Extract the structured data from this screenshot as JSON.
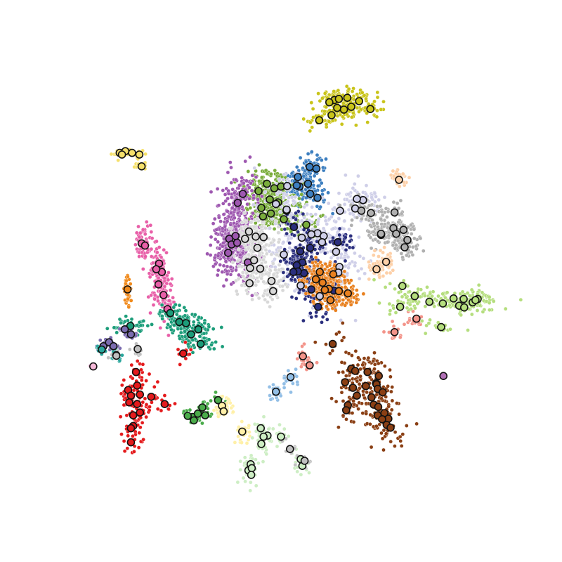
{
  "chart_data": {
    "type": "scatter",
    "title": "",
    "xlabel": "",
    "ylabel": "",
    "axes_visible": false,
    "grid": false,
    "legend": "none",
    "xlim": [
      0,
      100
    ],
    "ylim": [
      0,
      100
    ],
    "clusters": [
      {
        "color": "#c9c41a",
        "spread": [
          3.2,
          1.8
        ],
        "count": 240,
        "highlights": [
          [
            59.5,
            82.2
          ],
          [
            60.3,
            82.4
          ],
          [
            61.8,
            82.6
          ],
          [
            58.6,
            81.8
          ],
          [
            60.0,
            80.8
          ],
          [
            61.2,
            80.5
          ],
          [
            63.9,
            82.0
          ],
          [
            65.9,
            80.6
          ],
          [
            56.8,
            78.6
          ],
          [
            59.0,
            79.5
          ],
          [
            62.5,
            81.0
          ]
        ]
      },
      {
        "color": "#f5e06a",
        "spread": [
          1.3,
          0.6
        ],
        "count": 60,
        "highlights": [
          [
            21.3,
            72.8
          ],
          [
            22.3,
            73.1
          ],
          [
            23.5,
            72.8
          ],
          [
            24.8,
            72.5
          ],
          [
            21.7,
            72.5
          ],
          [
            25.2,
            70.4
          ]
        ]
      },
      {
        "color": "#3d7fc0",
        "spread": [
          2.4,
          2.2
        ],
        "count": 200,
        "highlights": [
          [
            55.1,
            70.3
          ],
          [
            56.3,
            70.0
          ],
          [
            53.0,
            68.5
          ],
          [
            54.8,
            67.3
          ],
          [
            53.3,
            66.8
          ],
          [
            55.2,
            65.5
          ],
          [
            56.5,
            64.8
          ],
          [
            52.8,
            67.0
          ]
        ]
      },
      {
        "color": "#7aad3c",
        "spread": [
          3.2,
          3.0
        ],
        "count": 400,
        "highlights": [
          [
            47.5,
            67.3
          ],
          [
            48.8,
            66.5
          ],
          [
            46.0,
            66.0
          ],
          [
            50.0,
            66.8
          ],
          [
            48.0,
            64.5
          ],
          [
            49.5,
            64.0
          ],
          [
            46.5,
            63.0
          ],
          [
            48.2,
            62.0
          ],
          [
            51.0,
            62.5
          ],
          [
            50.5,
            61.0
          ],
          [
            54.5,
            60.0
          ],
          [
            46.8,
            61.5
          ]
        ]
      },
      {
        "color": "#9e58b0",
        "spread": [
          3.0,
          4.5
        ],
        "count": 550,
        "highlights": [
          [
            42.3,
            63.9
          ],
          [
            43.2,
            65.5
          ],
          [
            41.9,
            58.0
          ],
          [
            40.8,
            57.5
          ],
          [
            41.2,
            56.5
          ],
          [
            40.6,
            55.0
          ],
          [
            42.2,
            56.8
          ],
          [
            44.1,
            53.3
          ]
        ]
      },
      {
        "color": "#cfcfe8",
        "spread": [
          4.5,
          4.0
        ],
        "count": 500,
        "highlights": [
          [
            63.2,
            62.9
          ],
          [
            64.6,
            64.4
          ],
          [
            63.5,
            64.6
          ],
          [
            60.5,
            62.5
          ],
          [
            56.5,
            58.5
          ],
          [
            57.6,
            58.0
          ],
          [
            55.4,
            58.3
          ],
          [
            53.7,
            57.7
          ],
          [
            57.3,
            56.9
          ],
          [
            59.8,
            55.2
          ],
          [
            60.4,
            52.5
          ],
          [
            60.2,
            51.5
          ],
          [
            56.9,
            47.3
          ],
          [
            53.5,
            49.2
          ],
          [
            50.5,
            54.7
          ],
          [
            51.0,
            62.7
          ],
          [
            51.1,
            66.9
          ],
          [
            49.1,
            63.7
          ]
        ]
      },
      {
        "color": "#2b2f7e",
        "spread": [
          2.6,
          3.0
        ],
        "count": 300,
        "highlights": [
          [
            52.3,
            59.6
          ],
          [
            53.4,
            55.3
          ],
          [
            55.2,
            55.9
          ],
          [
            53.8,
            53.3
          ],
          [
            52.8,
            52.8
          ],
          [
            54.1,
            51.4
          ],
          [
            53.0,
            51.7
          ],
          [
            52.2,
            51.6
          ],
          [
            55.4,
            48.5
          ],
          [
            56.6,
            45.4
          ],
          [
            59.4,
            48.3
          ],
          [
            60.1,
            56.9
          ]
        ]
      },
      {
        "color": "#e8801f",
        "spread": [
          2.6,
          2.4
        ],
        "count": 320,
        "highlights": [
          [
            56.2,
            50.3
          ],
          [
            57.4,
            49.7
          ],
          [
            58.5,
            48.6
          ],
          [
            60.3,
            48.2
          ],
          [
            58.8,
            46.6
          ],
          [
            57.8,
            48.4
          ],
          [
            61.9,
            47.8
          ],
          [
            56.9,
            51.6
          ],
          [
            59.3,
            51.2
          ]
        ]
      },
      {
        "color": "#b0b0b0",
        "spread": [
          2.6,
          2.2
        ],
        "count": 260,
        "highlights": [
          [
            64.3,
            62.5
          ],
          [
            66.0,
            62.1
          ],
          [
            70.2,
            62.2
          ],
          [
            67.8,
            58.2
          ],
          [
            70.0,
            59.4
          ],
          [
            71.8,
            59.1
          ],
          [
            70.5,
            58.4
          ],
          [
            72.5,
            57.3
          ],
          [
            72.0,
            56.0
          ],
          [
            67.8,
            58.4
          ]
        ]
      },
      {
        "color": "#fdd0a8",
        "spread": [
          1.6,
          2.0
        ],
        "count": 110,
        "highlights": [
          [
            68.7,
            53.4
          ],
          [
            67.0,
            52.1
          ],
          [
            71.0,
            68.0
          ]
        ]
      },
      {
        "color": "#d8d8d8",
        "spread": [
          3.0,
          2.6
        ],
        "count": 330,
        "highlights": [
          [
            43.6,
            57.5
          ],
          [
            44.3,
            58.8
          ],
          [
            45.5,
            57.9
          ],
          [
            46.9,
            57.8
          ],
          [
            45.8,
            55.9
          ],
          [
            45.2,
            53.7
          ],
          [
            44.5,
            52.3
          ],
          [
            46.3,
            52.2
          ],
          [
            48.3,
            50.0
          ],
          [
            44.4,
            49.6
          ],
          [
            48.6,
            48.2
          ]
        ]
      },
      {
        "color": "#e85fa8",
        "spread": [
          1.3,
          3.8
        ],
        "count": 240,
        "highlights": [
          [
            25.2,
            56.7
          ],
          [
            25.8,
            56.3
          ],
          [
            28.3,
            53.1
          ],
          [
            28.8,
            51.6
          ],
          [
            27.8,
            52.1
          ],
          [
            28.2,
            49.4
          ],
          [
            29.1,
            47.5
          ],
          [
            29.8,
            45.0
          ]
        ]
      },
      {
        "color": "#1c9d7a",
        "spread": [
          3.2,
          1.4
        ],
        "count": 260,
        "highlights": [
          [
            23.2,
            42.0
          ],
          [
            30.3,
            44.3
          ],
          [
            31.9,
            42.7
          ],
          [
            33.1,
            42.5
          ],
          [
            35.3,
            41.4
          ],
          [
            34.0,
            40.5
          ],
          [
            35.7,
            38.8
          ]
        ]
      },
      {
        "color": "#f08a1c",
        "spread": [
          0.6,
          2.5
        ],
        "count": 50,
        "highlights": [
          [
            22.7,
            48.5
          ]
        ]
      },
      {
        "color": "#7b6cb0",
        "spread": [
          1.3,
          0.9
        ],
        "count": 70,
        "highlights": [
          [
            22.2,
            41.4
          ],
          [
            23.3,
            40.5
          ],
          [
            18.4,
            38.4
          ],
          [
            19.4,
            39.1
          ],
          [
            20.2,
            38.4
          ]
        ]
      },
      {
        "color": "#2aa69c",
        "spread": [
          1.0,
          1.0
        ],
        "count": 45,
        "highlights": [
          [
            20.7,
            36.8
          ],
          [
            18.1,
            37.8
          ]
        ]
      },
      {
        "color": "#f5b8d8",
        "spread": [
          0.5,
          0.5
        ],
        "count": 10,
        "highlights": [
          [
            16.6,
            34.8
          ]
        ]
      },
      {
        "color": "#e41a1c",
        "spread": [
          2.0,
          2.6
        ],
        "count": 150,
        "highlights": [
          [
            24.2,
            33.8
          ],
          [
            32.6,
            37.1
          ],
          [
            24.4,
            31.4
          ],
          [
            22.8,
            30.6
          ],
          [
            23.3,
            29.6
          ],
          [
            23.0,
            28.4
          ],
          [
            24.9,
            26.6
          ],
          [
            23.7,
            26.1
          ],
          [
            24.4,
            28.1
          ],
          [
            26.9,
            29.4
          ],
          [
            29.3,
            28.1
          ],
          [
            24.9,
            29.8
          ],
          [
            23.7,
            24.2
          ],
          [
            23.3,
            21.3
          ],
          [
            23.3,
            23.8
          ]
        ]
      },
      {
        "color": "#4aab4a",
        "spread": [
          1.5,
          1.0
        ],
        "count": 60,
        "highlights": [
          [
            36.0,
            27.5
          ],
          [
            34.3,
            25.8
          ],
          [
            35.2,
            26.4
          ],
          [
            36.5,
            26.1
          ],
          [
            33.4,
            26.0
          ],
          [
            34.5,
            25.2
          ],
          [
            38.8,
            28.8
          ]
        ]
      },
      {
        "color": "#fff0a8",
        "spread": [
          1.6,
          1.6
        ],
        "count": 90,
        "highlights": [
          [
            39.5,
            27.8
          ],
          [
            39.8,
            26.8
          ],
          [
            43.1,
            23.2
          ]
        ]
      },
      {
        "color": "#cdeec4",
        "spread": [
          1.6,
          2.4
        ],
        "count": 120,
        "highlights": [
          [
            46.4,
            23.8
          ],
          [
            47.6,
            22.5
          ],
          [
            46.9,
            22.3
          ],
          [
            46.5,
            21.0
          ],
          [
            50.0,
            22.3
          ],
          [
            44.2,
            16.3
          ],
          [
            44.6,
            17.4
          ],
          [
            44.8,
            16.7
          ],
          [
            44.7,
            15.5
          ],
          [
            53.8,
            17.1
          ],
          [
            53.5,
            18.3
          ]
        ]
      },
      {
        "color": "#c0c0c0",
        "spread": [
          1.3,
          1.3
        ],
        "count": 40,
        "highlights": [
          [
            54.2,
            18.0
          ],
          [
            51.6,
            20.1
          ],
          [
            24.5,
            37.9
          ],
          [
            20.7,
            36.7
          ]
        ]
      },
      {
        "color": "#93bfe6",
        "spread": [
          1.4,
          1.6
        ],
        "count": 50,
        "highlights": [
          [
            49.1,
            30.3
          ],
          [
            51.7,
            32.9
          ]
        ]
      },
      {
        "color": "#f3948a",
        "spread": [
          1.4,
          1.6
        ],
        "count": 60,
        "highlights": [
          [
            53.9,
            36.6
          ],
          [
            55.1,
            35.0
          ],
          [
            70.2,
            40.9
          ],
          [
            74.1,
            43.3
          ]
        ]
      },
      {
        "color": "#8a3f14",
        "spread": [
          2.6,
          4.0
        ],
        "count": 280,
        "highlights": [
          [
            62.5,
            34.4
          ],
          [
            63.2,
            34.0
          ],
          [
            65.4,
            33.8
          ],
          [
            67.4,
            33.1
          ],
          [
            61.4,
            32.0
          ],
          [
            62.8,
            31.0
          ],
          [
            65.1,
            31.3
          ],
          [
            66.9,
            31.8
          ],
          [
            67.0,
            31.6
          ],
          [
            67.2,
            30.8
          ],
          [
            68.1,
            30.2
          ],
          [
            63.5,
            29.6
          ],
          [
            66.1,
            29.3
          ],
          [
            66.5,
            28.0
          ],
          [
            67.3,
            27.6
          ],
          [
            61.9,
            27.9
          ],
          [
            67.2,
            26.1
          ],
          [
            68.4,
            26.5
          ],
          [
            69.1,
            25.5
          ],
          [
            68.0,
            25.4
          ],
          [
            68.8,
            24.4
          ],
          [
            69.5,
            23.9
          ],
          [
            61.6,
            27.0
          ],
          [
            59.2,
            38.8
          ]
        ]
      },
      {
        "color": "#b5de7e",
        "spread": [
          4.5,
          1.5
        ],
        "count": 230,
        "highlights": [
          [
            71.6,
            49.1
          ],
          [
            73.8,
            47.3
          ],
          [
            71.2,
            45.4
          ],
          [
            76.4,
            46.3
          ],
          [
            78.8,
            46.0
          ],
          [
            80.7,
            46.9
          ],
          [
            82.5,
            46.8
          ],
          [
            84.1,
            46.2
          ],
          [
            81.7,
            45.6
          ],
          [
            82.6,
            45.3
          ],
          [
            85.0,
            46.8
          ],
          [
            84.6,
            46.6
          ],
          [
            78.5,
            41.8
          ]
        ]
      },
      {
        "color": "#b06fb5",
        "spread": [
          0.4,
          0.4
        ],
        "count": 6,
        "highlights": [
          [
            78.9,
            33.1
          ]
        ]
      }
    ]
  }
}
